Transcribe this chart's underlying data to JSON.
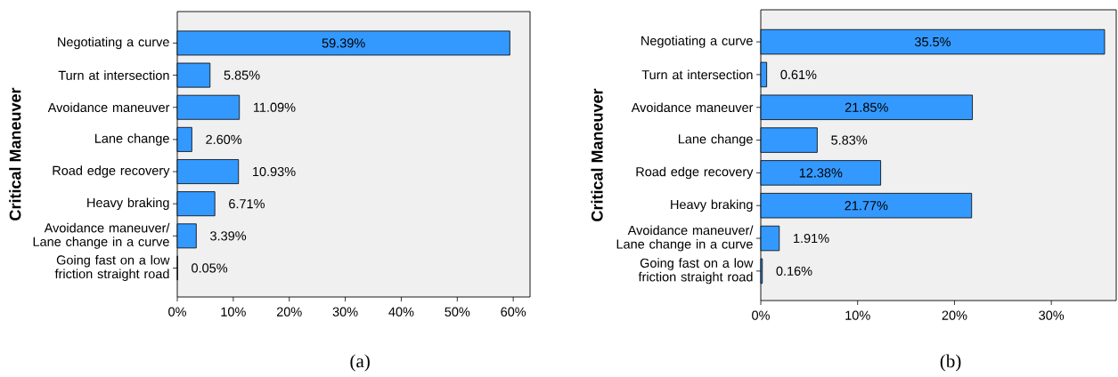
{
  "chart_data": [
    {
      "type": "bar",
      "orientation": "horizontal",
      "ylabel": "Critical Maneuver",
      "categories": [
        "Negotiating a curve",
        "Turn at intersection",
        "Avoidance maneuver",
        "Lane change",
        "Road edge recovery",
        "Heavy braking",
        "Avoidance maneuver/ Lane change in a curve",
        "Going fast on a low friction straight road"
      ],
      "values": [
        59.39,
        5.85,
        11.09,
        2.6,
        10.93,
        6.71,
        3.39,
        0.05
      ],
      "value_labels": [
        "59.39%",
        "5.85%",
        "11.09%",
        "2.60%",
        "10.93%",
        "6.71%",
        "3.39%",
        "0.05%"
      ],
      "color": "#3399ff",
      "xlim": [
        0,
        63
      ],
      "xticks": [
        {
          "value": 0,
          "label": "0%"
        },
        {
          "value": 10,
          "label": "10%"
        },
        {
          "value": 20,
          "label": "20%"
        },
        {
          "value": 30,
          "label": "30%"
        },
        {
          "value": 40,
          "label": "40%"
        },
        {
          "value": 50,
          "label": "50%"
        },
        {
          "value": 60,
          "label": "60%"
        }
      ],
      "annotations": [
        "(a)"
      ]
    },
    {
      "type": "bar",
      "orientation": "horizontal",
      "ylabel": "Critical Maneuver",
      "categories": [
        "Negotiating a curve",
        "Turn at intersection",
        "Avoidance maneuver",
        "Lane change",
        "Road edge recovery",
        "Heavy braking",
        "Avoidance maneuver/ Lane change in a curve",
        "Going fast on a low friction straight road"
      ],
      "values": [
        35.5,
        0.61,
        21.85,
        5.83,
        12.38,
        21.77,
        1.91,
        0.16
      ],
      "value_labels": [
        "35.5%",
        "0.61%",
        "21.85%",
        "5.83%",
        "12.38%",
        "21.77%",
        "1.91%",
        "0.16%"
      ],
      "color": "#3399ff",
      "xlim": [
        0,
        36.7
      ],
      "xticks": [
        {
          "value": 0,
          "label": "0%"
        },
        {
          "value": 10,
          "label": "10%"
        },
        {
          "value": 20,
          "label": "20%"
        },
        {
          "value": 30,
          "label": "30%"
        }
      ],
      "annotations": [
        "(b)"
      ]
    }
  ]
}
